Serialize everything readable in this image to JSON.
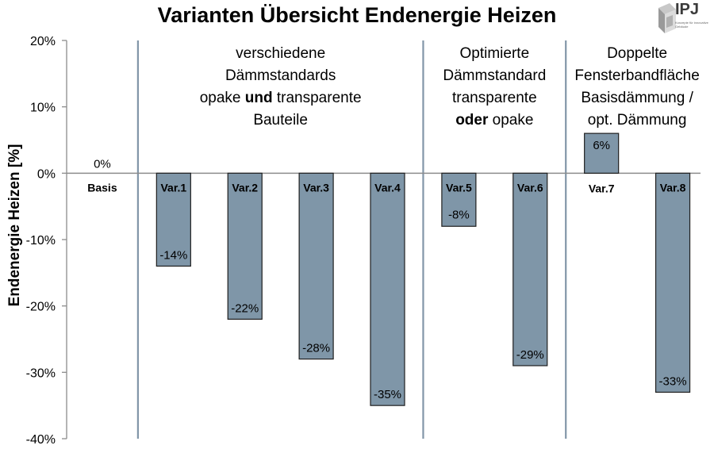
{
  "title": "Varianten Übersicht Endenergie Heizen",
  "logo": {
    "text": "IPJ",
    "subtext": "Konzepte für innovative Gebäude"
  },
  "colors": {
    "bar": "#7f96a8",
    "bar_stroke": "#1f1f1f",
    "axis": "#8c8c8c",
    "divider": "#8296a8",
    "text": "#000000"
  },
  "groups": [
    {
      "lines": [
        "verschiedene",
        "Dämmstandards",
        [
          "opake ",
          "und",
          " transparente"
        ],
        "Bauteile"
      ]
    },
    {
      "lines": [
        "Optimierte",
        "Dämmstandard",
        "transparente",
        [
          "",
          "oder",
          " opake"
        ]
      ]
    },
    {
      "lines": [
        "Doppelte",
        "Fensterbandfläche",
        "Basisdämmung /",
        "opt. Dämmung"
      ]
    }
  ],
  "chart_data": {
    "type": "bar",
    "title": "Varianten Übersicht Endenergie Heizen",
    "xlabel": "",
    "ylabel": "Endenergie Heizen  [%]",
    "ylim": [
      -40,
      20
    ],
    "yticks": [
      -40,
      -30,
      -20,
      -10,
      0,
      10,
      20
    ],
    "ytick_labels": [
      "-40%",
      "-30%",
      "-20%",
      "-10%",
      "0%",
      "10%",
      "20%"
    ],
    "categories": [
      "Basis",
      "Var.1",
      "Var.2",
      "Var.3",
      "Var.4",
      "Var.5",
      "Var.6",
      "Var.7",
      "Var.8"
    ],
    "values": [
      0,
      -14,
      -22,
      -28,
      -35,
      -8,
      -29,
      6,
      -33
    ],
    "data_labels": [
      "0%",
      "-14%",
      "-22%",
      "-28%",
      "-35%",
      "-8%",
      "-29%",
      "6%",
      "-33%"
    ],
    "grid": false,
    "legend": "none"
  }
}
